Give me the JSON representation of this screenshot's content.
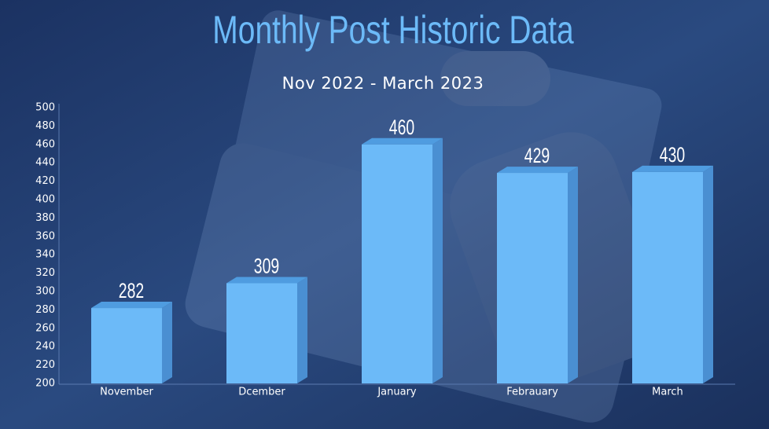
{
  "chart_data": {
    "type": "bar3d",
    "title": "Monthly Post Historic Data",
    "subtitle": "Nov 2022 - March 2023",
    "categories": [
      "November",
      "Dcember",
      "January",
      "Febrauary",
      "March"
    ],
    "values": [
      282,
      309,
      460,
      429,
      430
    ],
    "color": "#6cbaf8",
    "ylim": [
      200,
      500
    ],
    "yticks": [
      200,
      220,
      240,
      260,
      280,
      300,
      320,
      340,
      360,
      380,
      400,
      420,
      440,
      460,
      480,
      500
    ],
    "grid": false
  }
}
